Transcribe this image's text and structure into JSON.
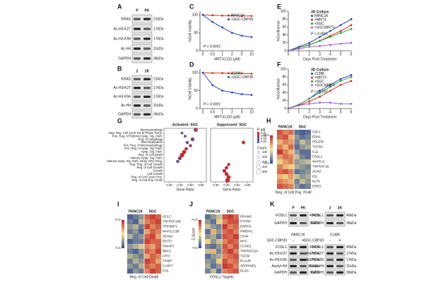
{
  "panel_labels": [
    "A",
    "B",
    "C",
    "D",
    "E",
    "F",
    "G",
    "H",
    "I",
    "J",
    "K"
  ],
  "blots": [
    {
      "lanes": [
        "P",
        "PK"
      ],
      "rows": [
        {
          "label": "KRAS",
          "kda": "21kDa"
        },
        {
          "label": "Ac-H3-K27",
          "kda": "17kDa"
        },
        {
          "label": "Ac-H3-K56",
          "kda": "17kDa"
        },
        {
          "label": "Ac-H4",
          "kda": "11kDa"
        },
        {
          "label": "GAPDH",
          "kda": "36kDa"
        }
      ]
    },
    {
      "lanes": [
        "2",
        "2K"
      ],
      "rows": [
        {
          "label": "KRAS",
          "kda": "21kDa"
        },
        {
          "label": "Ac-H3-K27",
          "kda": "17kDa"
        },
        {
          "label": "Ac-H3-K56",
          "kda": "17kDa"
        },
        {
          "label": "Ac-H4",
          "kda": "11kDa"
        },
        {
          "label": "GAPDH",
          "kda": "36kDa"
        }
      ]
    },
    {
      "lanes": [
        "P",
        "PK"
      ],
      "rows": [
        {
          "label": "FOSL1",
          "kda": "40kDa"
        },
        {
          "label": "GAPDH",
          "kda": "36kDa"
        }
      ]
    },
    {
      "lanes": [
        "2",
        "2K"
      ],
      "rows": [
        {
          "label": "FOSL1",
          "kda": "40kDa"
        },
        {
          "label": "GAPDH",
          "kda": "36kDa"
        }
      ]
    },
    {
      "cell": "PANC1K",
      "treatment": "SGC-CBP30",
      "lanes": [
        "-",
        "+"
      ],
      "rows": [
        {
          "label": "FOSL1",
          "kda": "40kDa"
        },
        {
          "label": "Ac-H3-K27",
          "kda": "17kDa"
        },
        {
          "label": "Ac-H3-K56",
          "kda": "17kDa"
        },
        {
          "label": "Acetyl-H4",
          "kda": "11kDa"
        },
        {
          "label": "GAPDH",
          "kda": "36kDa"
        }
      ]
    },
    {
      "cell": "2138K",
      "treatment": "SGC-CBP30",
      "lanes": [
        "-",
        "+"
      ],
      "rows": [
        {
          "label": "FOSL1",
          "kda": "40kDa"
        },
        {
          "label": "Ac-H3-K27",
          "kda": "17kDa"
        },
        {
          "label": "Ac-H3-K56",
          "kda": "17kDa"
        },
        {
          "label": "Acetyl-H4",
          "kda": "11kDa"
        },
        {
          "label": "GAPDH",
          "kda": "36kDa"
        }
      ]
    }
  ],
  "chart_data": [
    {
      "type": "line",
      "categories": [
        "0",
        "0.5",
        "1",
        "2",
        "5",
        "10"
      ],
      "xlabel": "MRTX1133 (μM)",
      "ylabel": "%Cell Viability",
      "annotation": "P < 0.0001",
      "ylim": [
        0,
        110
      ],
      "yticks": [
        0,
        50,
        100
      ],
      "series": [
        {
          "name": "PANC1K",
          "color": "#e02828",
          "values": [
            100,
            99,
            98,
            98,
            97,
            97
          ]
        },
        {
          "name": "+SGC-CBP30",
          "color": "#2446c0",
          "values": [
            100,
            80,
            65,
            50,
            42,
            38
          ]
        }
      ]
    },
    {
      "type": "line",
      "categories": [
        "0",
        "0.5",
        "1",
        "2",
        "5",
        "10"
      ],
      "xlabel": "MRTX1133 (μM)",
      "ylabel": "%Cell Viability",
      "annotation": "P < 0.0001",
      "ylim": [
        0,
        110
      ],
      "yticks": [
        0,
        50,
        100
      ],
      "series": [
        {
          "name": "2138K",
          "color": "#e02828",
          "values": [
            100,
            99,
            99,
            98,
            98,
            97
          ]
        },
        {
          "name": "+SGC-CBP30",
          "color": "#2446c0",
          "values": [
            100,
            65,
            50,
            45,
            40,
            38
          ]
        }
      ]
    },
    {
      "type": "line",
      "legend_title": "3D Culture",
      "x": [
        0,
        1,
        2,
        3,
        4,
        5,
        6
      ],
      "xlim": [
        0,
        6
      ],
      "xticks": [
        0,
        1,
        2,
        3,
        4,
        5,
        6
      ],
      "xlabel": "Days Post Treatment",
      "ylabel": "%Confluence",
      "annotation": "P < 0.0001",
      "ylim": [
        0,
        100
      ],
      "yticks": [
        0,
        20,
        40,
        60,
        80,
        100
      ],
      "series": [
        {
          "name": "PANC1K",
          "color": "#2446c0",
          "values": [
            0,
            10,
            20,
            35,
            50,
            65,
            80
          ]
        },
        {
          "name": "+MRTX",
          "color": "#e02828",
          "values": [
            0,
            8,
            15,
            25,
            38,
            50,
            65
          ]
        },
        {
          "name": "+SGC",
          "color": "#2ca02c",
          "values": [
            0,
            8,
            15,
            25,
            35,
            45,
            55
          ]
        },
        {
          "name": "+SGC/MRTX",
          "color": "#a05cd6",
          "values": [
            0,
            5,
            10,
            12,
            15,
            18,
            20
          ]
        }
      ]
    },
    {
      "type": "line",
      "legend_title": "3D Culture",
      "x": [
        0,
        1,
        2,
        3,
        4,
        5,
        6
      ],
      "xlim": [
        0,
        6
      ],
      "xticks": [
        0,
        1,
        2,
        3,
        4,
        5,
        6
      ],
      "xlabel": "Days Post Treatment",
      "ylabel": "%Confluence",
      "annotation": "P < 0.0001",
      "ylim": [
        0,
        100
      ],
      "yticks": [
        0,
        20,
        40,
        60,
        80,
        100
      ],
      "series": [
        {
          "name": "2138K",
          "color": "#2446c0",
          "values": [
            0,
            10,
            25,
            45,
            60,
            75,
            85
          ]
        },
        {
          "name": "+MRTX",
          "color": "#e02828",
          "values": [
            0,
            8,
            18,
            30,
            45,
            60,
            70
          ]
        },
        {
          "name": "+SGC",
          "color": "#2ca02c",
          "values": [
            0,
            10,
            25,
            40,
            55,
            70,
            80
          ]
        },
        {
          "name": "+SGC/MRTX",
          "color": "#a05cd6",
          "values": [
            0,
            8,
            12,
            15,
            15,
            12,
            12
          ]
        }
      ]
    },
    {
      "type": "dot",
      "terms": [
        "Macroautophagy",
        "Neg. Reg. Cell Cycle G2 M Phase Trans.",
        "Pos. Reg. of Extrinsic Apop. Sig. Path.",
        "Reg. of Autophagy",
        "DNA Replication",
        "Pos. Reg. of Macroautophagy",
        "Pos. Reg. of Apop. Sig. Path.",
        "Apop. Sig. Path.",
        "Reg. of Cell Death",
        "Intrinsic Apop. Sig. Path.",
        "Intrinsic Apop. Sig. Path. Resp. DNA Dmg.",
        "Neg. Reg. of Cell Growth",
        "Reg. of Cell Growth",
        "Growth",
        "Cell Growth",
        "Reg. of Cell Cycle Proc.",
        "Reg. of Cell Pop. Prolif."
      ],
      "xlabel": "Gene Ratio",
      "xlim": [
        0.25,
        0.65
      ],
      "xticks": [
        {
          "value": 0.3,
          "label": "0.30"
        },
        {
          "value": 0.4,
          "label": "0.40"
        },
        {
          "value": 0.5,
          "label": "0.50"
        },
        {
          "value": 0.6,
          "label": "0.60"
        }
      ],
      "padj_label": "P adj",
      "padj_ticks": [
        0.01,
        0.02,
        0.03,
        0.04
      ],
      "padj_colors": [
        "#d62828",
        "#3a5fcd"
      ],
      "count_label": "Count",
      "count_ticks": [
        100,
        200,
        300,
        400,
        500
      ],
      "series": [
        {
          "name": "Activated: SGC",
          "values": [
            0.55,
            0.42,
            0.45,
            0.52,
            0.47,
            0.5,
            0.46,
            0.44,
            0.42,
            0.4,
            0.38,
            null,
            null,
            null,
            null,
            null,
            null
          ],
          "sizes": [
            350,
            150,
            150,
            300,
            200,
            200,
            250,
            350,
            450,
            300,
            200,
            null,
            null,
            null,
            null,
            null,
            null
          ],
          "padj": [
            0.02,
            0.035,
            0.03,
            0.025,
            0.03,
            0.02,
            0.015,
            0.01,
            0.01,
            0.02,
            0.03,
            null,
            null,
            null,
            null,
            null,
            null
          ]
        },
        {
          "name": "Suppressed: SGC",
          "values": [
            null,
            null,
            null,
            null,
            0.56,
            null,
            null,
            null,
            null,
            null,
            null,
            0.42,
            0.4,
            0.38,
            0.4,
            0.42,
            0.41
          ],
          "sizes": [
            null,
            null,
            null,
            null,
            250,
            null,
            null,
            null,
            null,
            null,
            null,
            200,
            250,
            300,
            300,
            350,
            450
          ],
          "padj": [
            null,
            null,
            null,
            null,
            0.01,
            null,
            null,
            null,
            null,
            null,
            null,
            0.015,
            0.01,
            0.01,
            0.01,
            0.01,
            0.01
          ]
        }
      ]
    },
    {
      "type": "heatmap",
      "groups": [
        "PANC1K",
        "SGC"
      ],
      "rows": [
        "CSF1",
        "EDN1",
        "PDGFB",
        "TGFB2",
        "IL11",
        "FOSL1",
        "MAPK11",
        "TNFRSF1B",
        "SOX9",
        "ID1",
        "KLF5",
        "EREG"
      ],
      "xlabel": "Reg. of Cell Pop. Prolif.",
      "zlim": [
        -0.4,
        0.4
      ],
      "zticks": [
        {
          "value": 0.4,
          "label": "+0.4"
        },
        {
          "value": -0.4,
          "label": "-0.4"
        }
      ],
      "colors": [
        "#2c4a9a",
        "#f5e690",
        "#c42127"
      ],
      "values": [
        [
          0.3,
          0.2,
          0.25,
          -0.3,
          -0.35,
          -0.3
        ],
        [
          0.25,
          0.3,
          0.1,
          -0.2,
          -0.3,
          -0.25
        ],
        [
          0.1,
          0.2,
          0.15,
          -0.25,
          -0.1,
          -0.2
        ],
        [
          0.2,
          0.1,
          0.25,
          -0.3,
          -0.2,
          -0.15
        ],
        [
          0.35,
          0.2,
          0.1,
          -0.2,
          -0.3,
          -0.3
        ],
        [
          0.15,
          0.25,
          0.2,
          -0.1,
          -0.25,
          -0.3
        ],
        [
          0.05,
          0.15,
          0.2,
          -0.2,
          -0.15,
          -0.1
        ],
        [
          0.2,
          0.1,
          0.05,
          -0.15,
          -0.2,
          -0.25
        ],
        [
          0.25,
          0.3,
          0.2,
          -0.3,
          -0.25,
          -0.2
        ],
        [
          0.1,
          0.05,
          0.15,
          -0.1,
          -0.2,
          -0.15
        ],
        [
          0.2,
          0.15,
          0.1,
          -0.25,
          -0.1,
          -0.2
        ],
        [
          0.3,
          0.25,
          0.2,
          -0.2,
          -0.3,
          -0.25
        ]
      ]
    },
    {
      "type": "heatmap",
      "groups": [
        "PANC1K",
        "SGC"
      ],
      "rows": [
        "GCLC",
        "TNFRSF10B",
        "TP53INP1",
        "MAP1LC3B",
        "SESN2",
        "DDIT3",
        "PMAIP1",
        "BBC3",
        "ATF3",
        "TXNIP",
        "CASP7",
        "FAS"
      ],
      "xlabel": "Reg. of Cell Death",
      "zlim": [
        -0.3,
        0.3
      ],
      "zticks": [
        {
          "value": 0.3,
          "label": "+0.3"
        },
        {
          "value": -0.3,
          "label": "-0.3"
        }
      ],
      "colors": [
        "#2c4a9a",
        "#f5e690",
        "#c42127"
      ],
      "values": [
        [
          -0.25,
          -0.2,
          -0.15,
          0.2,
          0.25,
          0.2
        ],
        [
          -0.2,
          -0.25,
          -0.1,
          0.15,
          0.2,
          0.25
        ],
        [
          -0.15,
          -0.1,
          -0.2,
          0.25,
          0.15,
          0.2
        ],
        [
          -0.2,
          -0.15,
          -0.25,
          0.1,
          0.2,
          0.15
        ],
        [
          -0.1,
          -0.2,
          -0.15,
          0.2,
          0.25,
          0.1
        ],
        [
          -0.25,
          -0.2,
          -0.2,
          0.25,
          0.2,
          0.2
        ],
        [
          -0.15,
          -0.1,
          -0.05,
          0.15,
          0.1,
          0.2
        ],
        [
          -0.2,
          -0.25,
          -0.15,
          0.2,
          0.15,
          0.25
        ],
        [
          -0.1,
          -0.15,
          -0.2,
          0.1,
          0.2,
          0.15
        ],
        [
          -0.2,
          -0.1,
          -0.15,
          0.25,
          0.2,
          0.1
        ],
        [
          -0.15,
          -0.2,
          -0.1,
          0.2,
          0.15,
          0.2
        ],
        [
          -0.25,
          -0.15,
          -0.2,
          0.15,
          0.25,
          0.2
        ]
      ]
    },
    {
      "type": "heatmap",
      "groups": [
        "PANC1K",
        "SGC"
      ],
      "rows": [
        "DRAM2",
        "PTPRK",
        "ERRFI1",
        "PMEPA1",
        "CD44",
        "MYC",
        "CCND1",
        "TNFRSF12A",
        "TGFBI",
        "PLAUR",
        "SERPINE1",
        "DLG5"
      ],
      "xlabel": "FOSL1 Targets",
      "zlabel": "Z-Score",
      "zlim": [
        -0.4,
        0.4
      ],
      "zticks": [
        {
          "value": 0.4,
          "label": "+0.4"
        },
        {
          "value": -0.4,
          "label": "-0.4"
        }
      ],
      "colors": [
        "#2c4a9a",
        "#f5e690",
        "#c42127"
      ],
      "values": [
        [
          -0.3,
          -0.2,
          -0.1,
          0.3,
          0.35,
          0.25
        ],
        [
          -0.2,
          -0.3,
          0.05,
          0.2,
          0.3,
          0.3
        ],
        [
          -0.1,
          -0.2,
          -0.25,
          0.35,
          0.2,
          0.25
        ],
        [
          -0.3,
          0.1,
          -0.2,
          0.25,
          0.3,
          0.2
        ],
        [
          -0.2,
          -0.15,
          -0.3,
          0.3,
          0.25,
          0.35
        ],
        [
          0.05,
          -0.2,
          -0.1,
          0.2,
          0.3,
          0.25
        ],
        [
          -0.25,
          -0.3,
          -0.2,
          0.3,
          0.2,
          0.3
        ],
        [
          -0.1,
          0.1,
          -0.25,
          0.25,
          0.35,
          0.2
        ],
        [
          -0.3,
          -0.2,
          -0.15,
          0.2,
          0.25,
          0.3
        ],
        [
          -0.2,
          -0.25,
          0.05,
          0.3,
          0.2,
          0.25
        ],
        [
          -0.15,
          -0.3,
          -0.2,
          0.35,
          0.3,
          0.2
        ],
        [
          -0.25,
          -0.1,
          -0.3,
          0.2,
          0.25,
          0.3
        ]
      ]
    }
  ]
}
